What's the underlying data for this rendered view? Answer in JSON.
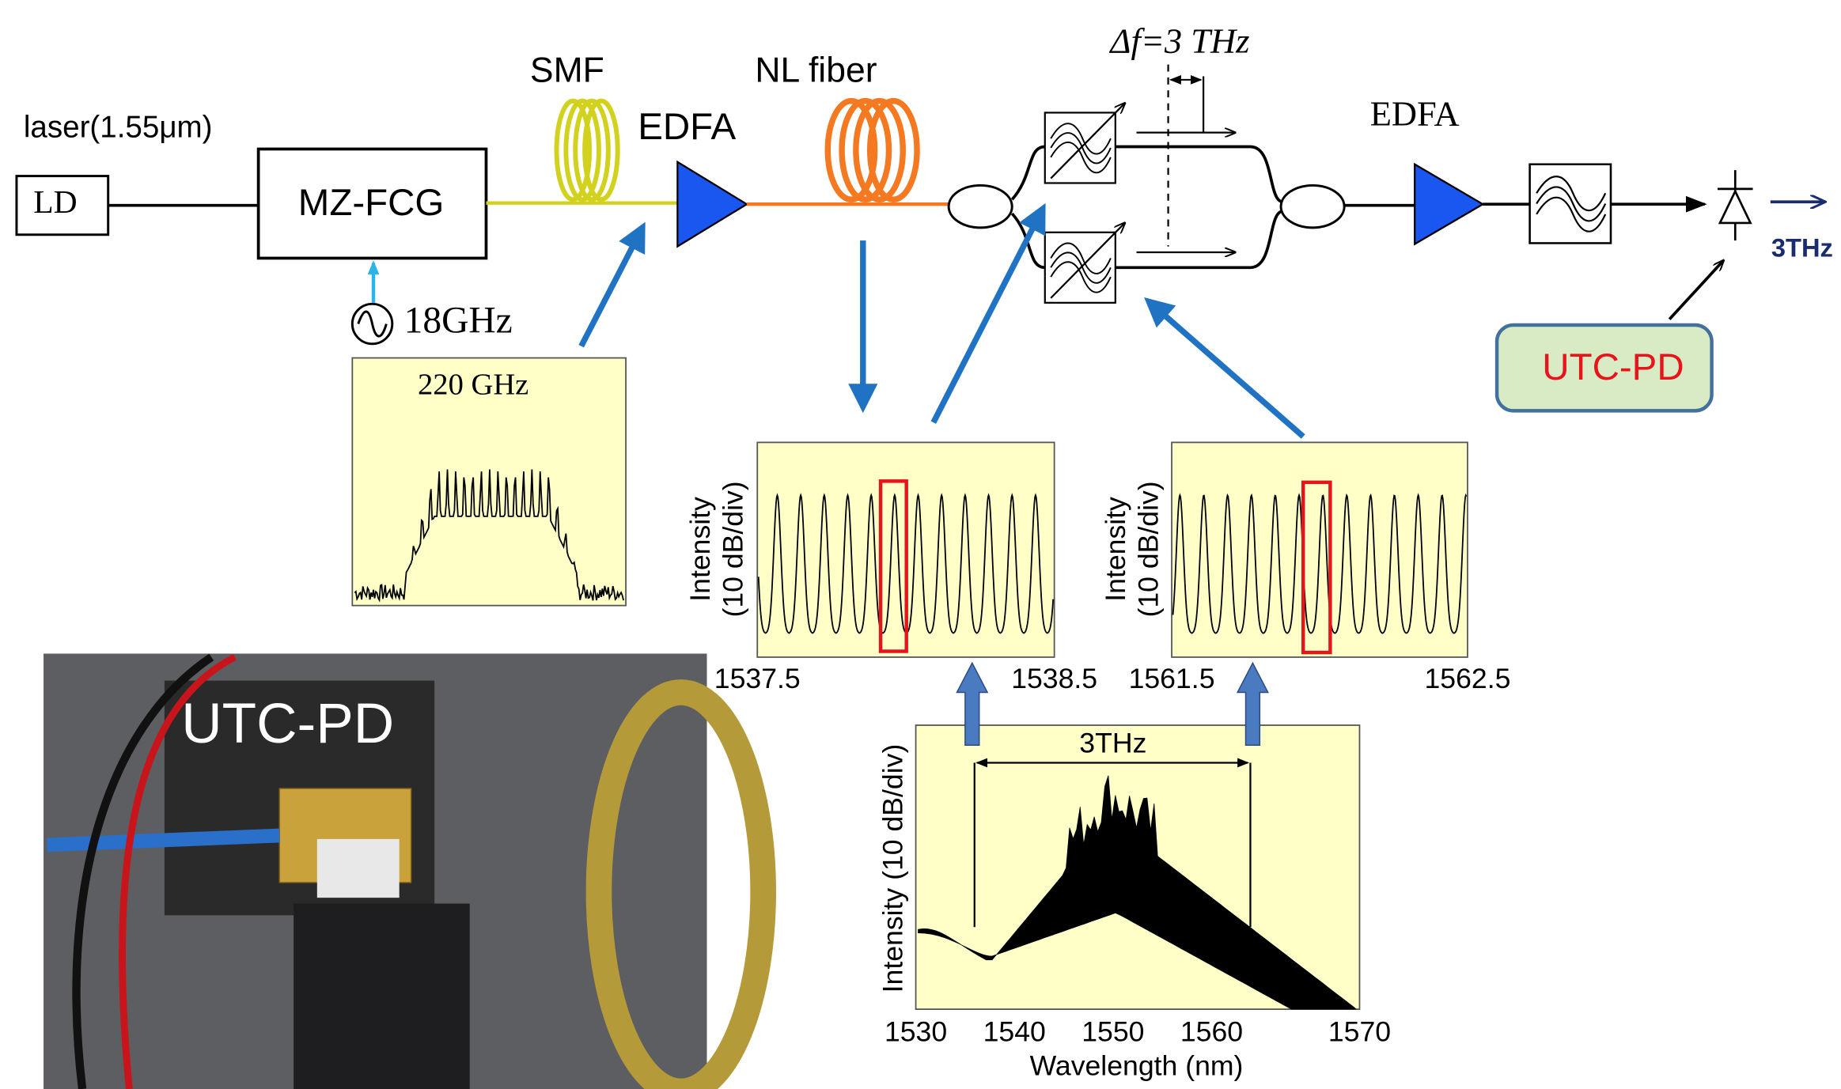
{
  "diagram": {
    "laser_label": "laser(1.55μm)",
    "ld": "LD",
    "modulator": "MZ-FCG",
    "rf_source": "18GHz",
    "smf": "SMF",
    "edfa_1": "EDFA",
    "nl_fiber": "NL fiber",
    "delta_f": "Δf=3 THz",
    "edfa_2": "EDFA",
    "output": "3THz",
    "photodiode": "UTC-PD"
  },
  "insets": [
    {
      "label": "220 GHz"
    },
    {
      "y_label": [
        "Intensity",
        "(10 dB/div)"
      ],
      "x_ticks": [
        "1537.5",
        "1538.5"
      ]
    },
    {
      "y_label": [
        "Intensity",
        "(10 dB/div)"
      ],
      "x_ticks": [
        "1561.5",
        "1562.5"
      ]
    },
    {
      "y_label": "Intensity (10 dB/div)",
      "x_ticks": [
        "1530",
        "1540",
        "1550",
        "1560",
        "1570"
      ],
      "x_label": "Wavelength (nm)",
      "span_label": "3THz"
    }
  ],
  "photo": {
    "label": "UTC-PD"
  }
}
